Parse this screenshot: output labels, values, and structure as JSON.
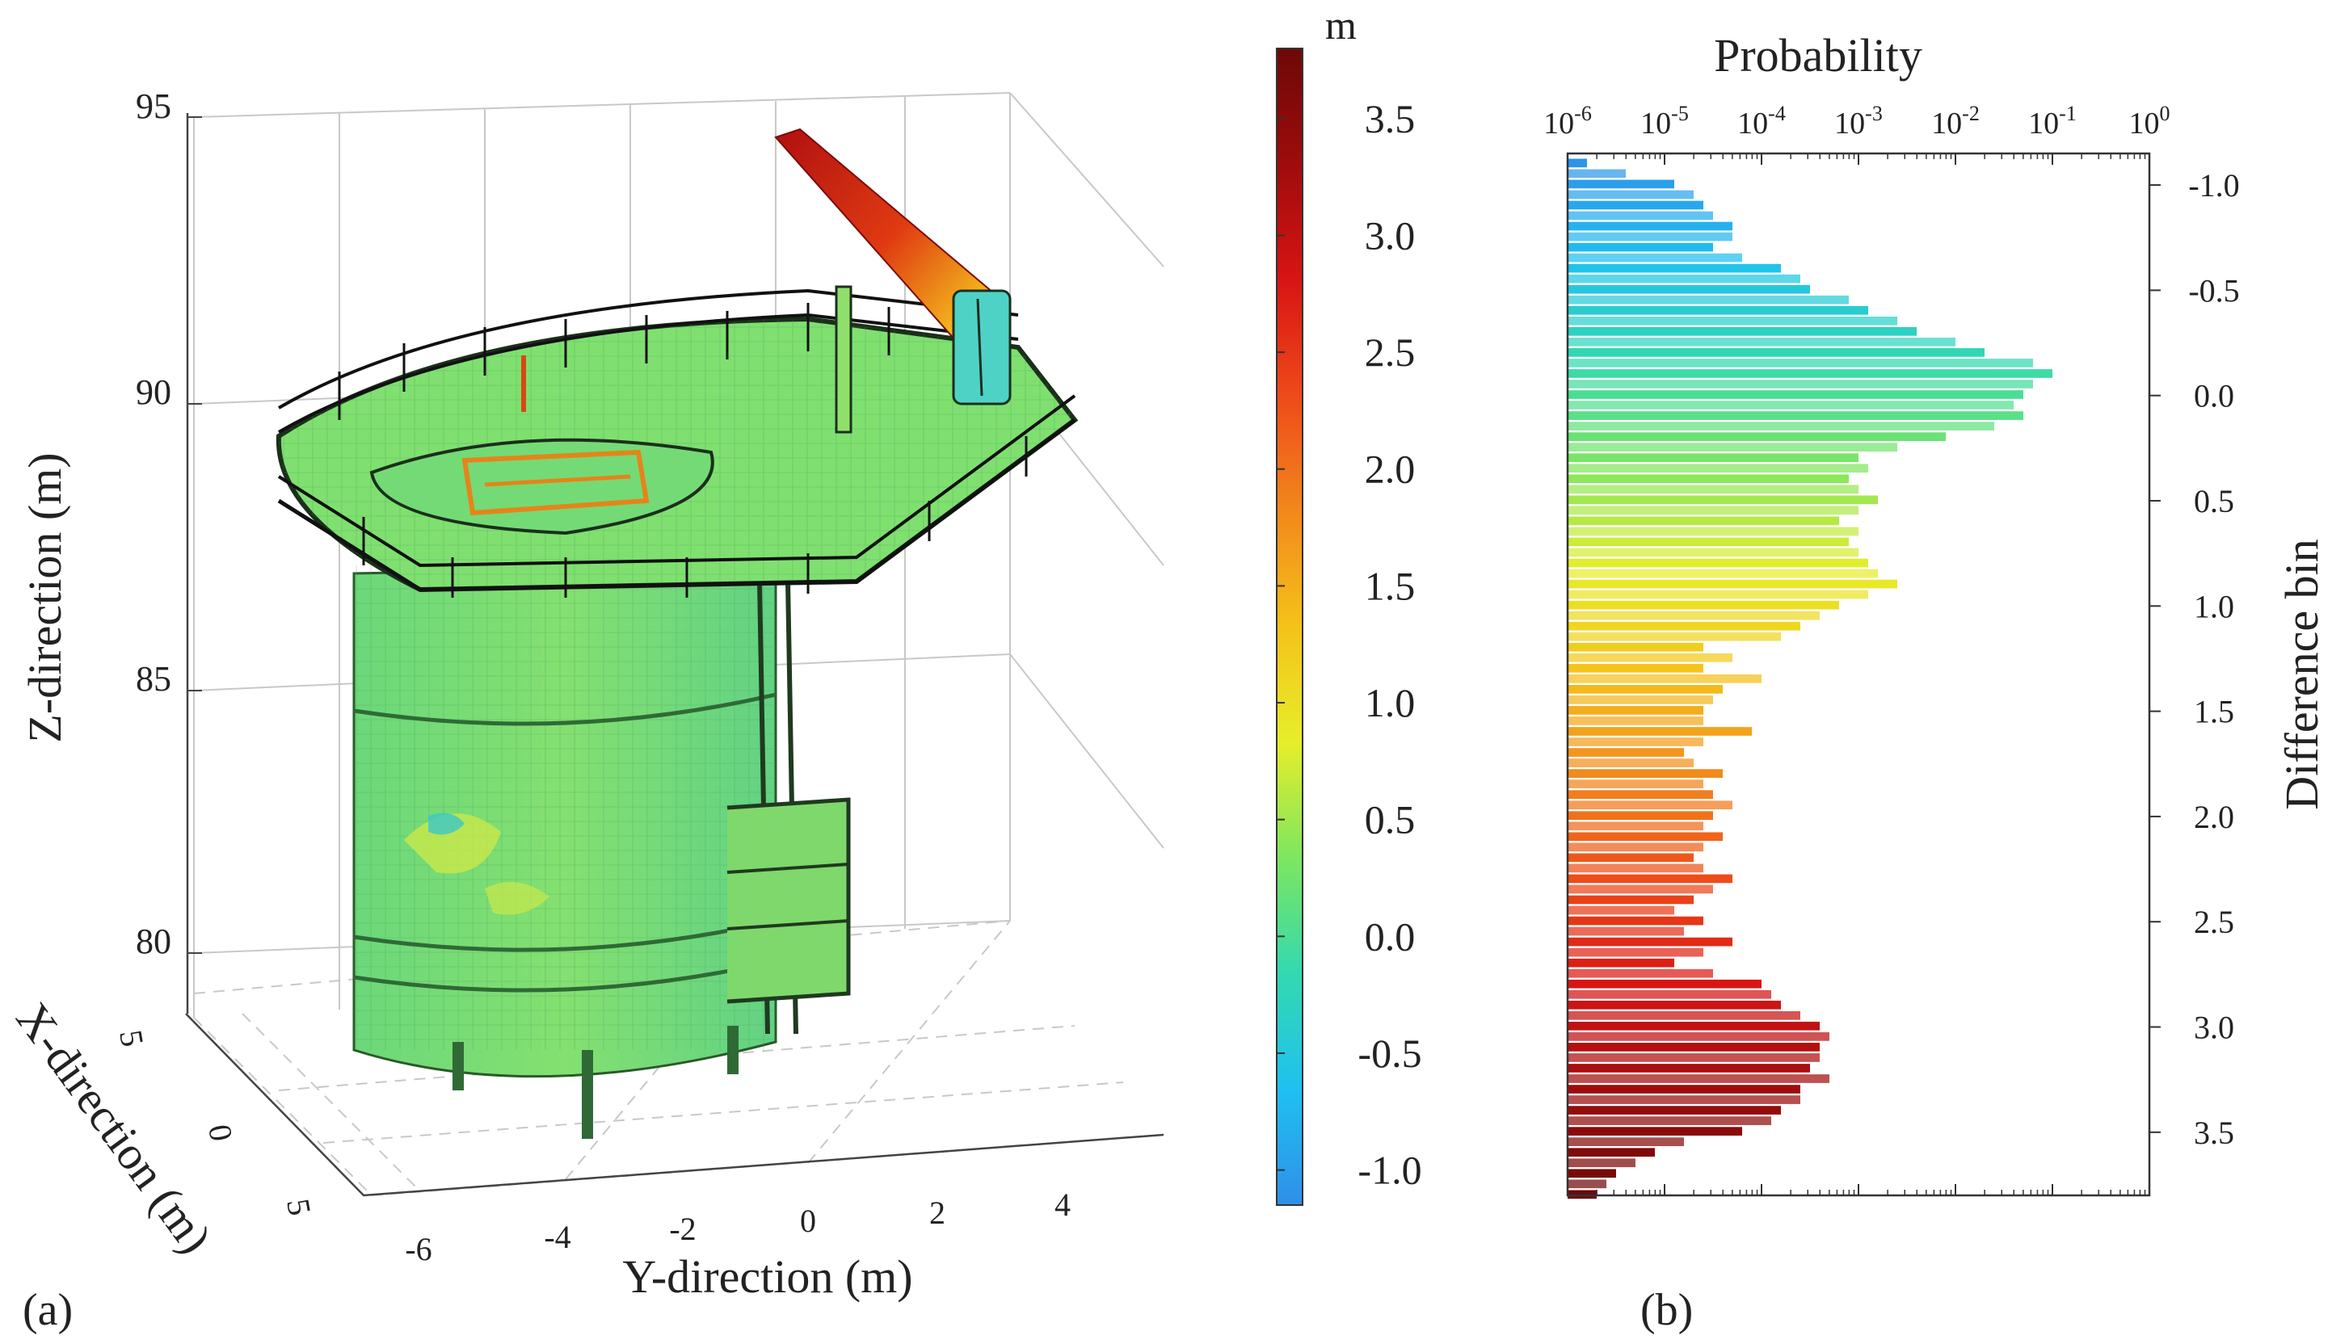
{
  "panel_a": {
    "label": "(a)",
    "colorbar": {
      "unit": "m",
      "range": [
        -1.15,
        3.8
      ],
      "ticks": [
        "-1.0",
        "-0.5",
        "0.0",
        "0.5",
        "1.0",
        "1.5",
        "2.0",
        "2.5",
        "3.0",
        "3.5"
      ],
      "tick_values": [
        -1.0,
        -0.5,
        0.0,
        0.5,
        1.0,
        1.5,
        2.0,
        2.5,
        3.0,
        3.5
      ],
      "colors": [
        "#2f8fe8",
        "#1fc1f0",
        "#33d9b0",
        "#7ee660",
        "#e6ee2a",
        "#f5c21a",
        "#f2881c",
        "#ee4a1a",
        "#d81414",
        "#9e0c0c",
        "#6e0808"
      ]
    },
    "axes": {
      "z_label": "Z-direction (m)",
      "x_label": "X-direction (m)",
      "y_label": "Y-direction (m)",
      "z_ticks": [
        "95",
        "90",
        "85",
        "80"
      ],
      "x_ticks": [
        "5",
        "0",
        "5"
      ],
      "y_ticks": [
        "-6",
        "-4",
        "-2",
        "0",
        "2",
        "4"
      ]
    }
  },
  "panel_b": {
    "label": "(b)"
  },
  "chart_data": {
    "type": "bar",
    "orientation": "horizontal",
    "title": "Probability",
    "xlabel": "Probability",
    "ylabel": "Difference bin",
    "xscale": "log",
    "xlim_exp": [
      -6,
      0
    ],
    "x_tick_base": "10",
    "x_tick_exponents": [
      "-6",
      "-5",
      "-4",
      "-3",
      "-2",
      "-1",
      "0"
    ],
    "ylim": [
      -1.15,
      3.8
    ],
    "y_ticks": [
      "-1.0",
      "-0.5",
      "0.0",
      "0.5",
      "1.0",
      "1.5",
      "2.0",
      "2.5",
      "3.0",
      "3.5"
    ],
    "y_tick_values": [
      -1.0,
      -0.5,
      0.0,
      0.5,
      1.0,
      1.5,
      2.0,
      2.5,
      3.0,
      3.5
    ],
    "bin_start": -1.125,
    "bin_width": 0.05,
    "log10_probability": [
      -5.8,
      -5.4,
      -4.9,
      -4.7,
      -4.6,
      -4.5,
      -4.3,
      -4.3,
      -4.5,
      -4.2,
      -3.8,
      -3.6,
      -3.5,
      -3.1,
      -2.9,
      -2.6,
      -2.4,
      -2.0,
      -1.7,
      -1.2,
      -1.0,
      -1.2,
      -1.3,
      -1.4,
      -1.3,
      -1.6,
      -2.1,
      -2.6,
      -3.0,
      -2.9,
      -3.1,
      -3.0,
      -2.8,
      -3.0,
      -3.2,
      -3.0,
      -3.1,
      -3.0,
      -2.9,
      -2.8,
      -2.6,
      -2.9,
      -3.2,
      -3.4,
      -3.6,
      -3.8,
      -4.6,
      -4.3,
      -4.6,
      -4.0,
      -4.4,
      -4.5,
      -4.6,
      -4.6,
      -4.1,
      -4.6,
      -4.8,
      -4.7,
      -4.4,
      -4.6,
      -4.5,
      -4.3,
      -4.5,
      -4.6,
      -4.4,
      -4.6,
      -4.7,
      -4.6,
      -4.3,
      -4.5,
      -4.7,
      -4.9,
      -4.6,
      -4.8,
      -4.3,
      -4.6,
      -4.9,
      -4.5,
      -4.0,
      -3.9,
      -3.8,
      -3.6,
      -3.4,
      -3.3,
      -3.4,
      -3.4,
      -3.5,
      -3.3,
      -3.6,
      -3.6,
      -3.8,
      -3.9,
      -4.2,
      -4.8,
      -5.1,
      -5.3,
      -5.5,
      -5.6,
      -5.7
    ]
  }
}
